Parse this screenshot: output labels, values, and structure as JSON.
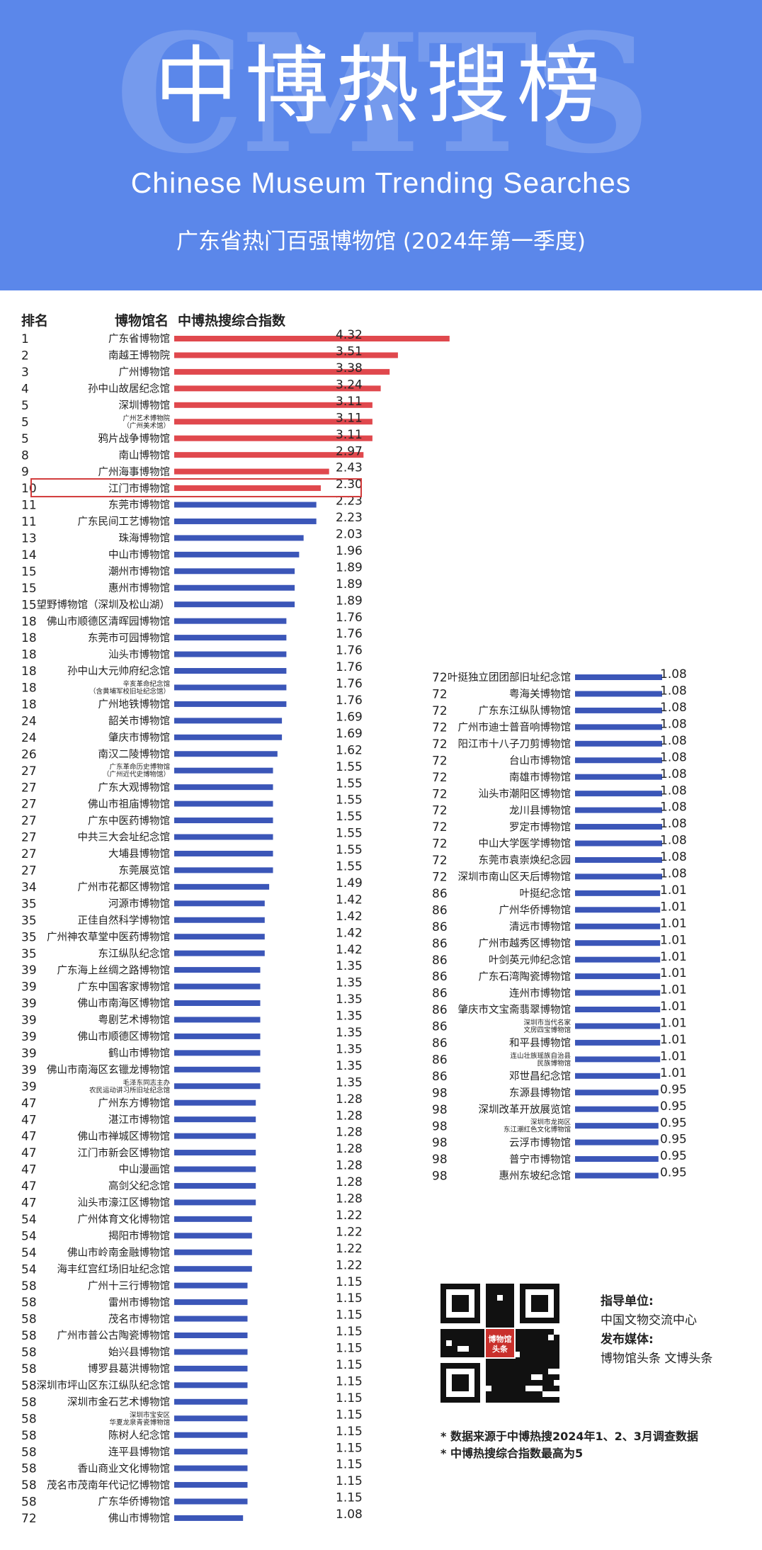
{
  "banner": {
    "watermark": "CMTS",
    "title_cn": "中博热搜榜",
    "title_en": "Chinese Museum Trending Searches",
    "subtitle": "广东省热门百强博物馆 (2024年第一季度)"
  },
  "colors": {
    "banner_bg": "#5b87ea",
    "top_bar": "#e0484d",
    "bar": "#3b56b8",
    "highlight_box": "#d23b3b"
  },
  "chart_data": {
    "type": "bar",
    "orientation": "horizontal",
    "columns": {
      "rank": "排名",
      "name": "博物馆名",
      "index": "中博热搜综合指数"
    },
    "value_range": [
      0,
      5
    ],
    "highlight_rank_row": 10,
    "rows": [
      {
        "rank": "1",
        "name": "广东省博物馆",
        "value": "4.32"
      },
      {
        "rank": "2",
        "name": "南越王博物院",
        "value": "3.51"
      },
      {
        "rank": "3",
        "name": "广州博物馆",
        "value": "3.38"
      },
      {
        "rank": "4",
        "name": "孙中山故居纪念馆",
        "value": "3.24"
      },
      {
        "rank": "5",
        "name": "深圳博物馆",
        "value": "3.11"
      },
      {
        "rank": "5",
        "name": "广州艺术博物院\n（广州美术馆）",
        "value": "3.11"
      },
      {
        "rank": "5",
        "name": "鸦片战争博物馆",
        "value": "3.11"
      },
      {
        "rank": "8",
        "name": "南山博物馆",
        "value": "2.97"
      },
      {
        "rank": "9",
        "name": "广州海事博物馆",
        "value": "2.43"
      },
      {
        "rank": "10",
        "name": "江门市博物馆",
        "value": "2.30"
      },
      {
        "rank": "11",
        "name": "东莞市博物馆",
        "value": "2.23"
      },
      {
        "rank": "11",
        "name": "广东民间工艺博物馆",
        "value": "2.23"
      },
      {
        "rank": "13",
        "name": "珠海博物馆",
        "value": "2.03"
      },
      {
        "rank": "14",
        "name": "中山市博物馆",
        "value": "1.96"
      },
      {
        "rank": "15",
        "name": "潮州市博物馆",
        "value": "1.89"
      },
      {
        "rank": "15",
        "name": "惠州市博物馆",
        "value": "1.89"
      },
      {
        "rank": "15",
        "name": "望野博物馆（深圳及松山湖）",
        "value": "1.89"
      },
      {
        "rank": "18",
        "name": "佛山市顺德区清晖园博物馆",
        "value": "1.76"
      },
      {
        "rank": "18",
        "name": "东莞市可园博物馆",
        "value": "1.76"
      },
      {
        "rank": "18",
        "name": "汕头市博物馆",
        "value": "1.76"
      },
      {
        "rank": "18",
        "name": "孙中山大元帅府纪念馆",
        "value": "1.76"
      },
      {
        "rank": "18",
        "name": "辛亥革命纪念馆\n（含黄埔军校旧址纪念馆）",
        "value": "1.76"
      },
      {
        "rank": "18",
        "name": "广州地铁博物馆",
        "value": "1.76"
      },
      {
        "rank": "24",
        "name": "韶关市博物馆",
        "value": "1.69"
      },
      {
        "rank": "24",
        "name": "肇庆市博物馆",
        "value": "1.69"
      },
      {
        "rank": "26",
        "name": "南汉二陵博物馆",
        "value": "1.62"
      },
      {
        "rank": "27",
        "name": "广东革命历史博物馆\n（广州近代史博物馆）",
        "value": "1.55"
      },
      {
        "rank": "27",
        "name": "广东大观博物馆",
        "value": "1.55"
      },
      {
        "rank": "27",
        "name": "佛山市祖庙博物馆",
        "value": "1.55"
      },
      {
        "rank": "27",
        "name": "广东中医药博物馆",
        "value": "1.55"
      },
      {
        "rank": "27",
        "name": "中共三大会址纪念馆",
        "value": "1.55"
      },
      {
        "rank": "27",
        "name": "大埔县博物馆",
        "value": "1.55"
      },
      {
        "rank": "27",
        "name": "东莞展览馆",
        "value": "1.55"
      },
      {
        "rank": "34",
        "name": "广州市花都区博物馆",
        "value": "1.49"
      },
      {
        "rank": "35",
        "name": "河源市博物馆",
        "value": "1.42"
      },
      {
        "rank": "35",
        "name": "正佳自然科学博物馆",
        "value": "1.42"
      },
      {
        "rank": "35",
        "name": "广州神农草堂中医药博物馆",
        "value": "1.42"
      },
      {
        "rank": "35",
        "name": "东江纵队纪念馆",
        "value": "1.42"
      },
      {
        "rank": "39",
        "name": "广东海上丝绸之路博物馆",
        "value": "1.35"
      },
      {
        "rank": "39",
        "name": "广东中国客家博物馆",
        "value": "1.35"
      },
      {
        "rank": "39",
        "name": "佛山市南海区博物馆",
        "value": "1.35"
      },
      {
        "rank": "39",
        "name": "粤剧艺术博物馆",
        "value": "1.35"
      },
      {
        "rank": "39",
        "name": "佛山市顺德区博物馆",
        "value": "1.35"
      },
      {
        "rank": "39",
        "name": "鹤山市博物馆",
        "value": "1.35"
      },
      {
        "rank": "39",
        "name": "佛山市南海区玄镴龙博物馆",
        "value": "1.35"
      },
      {
        "rank": "39",
        "name": "毛泽东同志主办\n农民运动讲习所旧址纪念馆",
        "value": "1.35"
      },
      {
        "rank": "47",
        "name": "广州东方博物馆",
        "value": "1.28"
      },
      {
        "rank": "47",
        "name": "湛江市博物馆",
        "value": "1.28"
      },
      {
        "rank": "47",
        "name": "佛山市禅城区博物馆",
        "value": "1.28"
      },
      {
        "rank": "47",
        "name": "江门市新会区博物馆",
        "value": "1.28"
      },
      {
        "rank": "47",
        "name": "中山漫画馆",
        "value": "1.28"
      },
      {
        "rank": "47",
        "name": "高剑父纪念馆",
        "value": "1.28"
      },
      {
        "rank": "47",
        "name": "汕头市濠江区博物馆",
        "value": "1.28"
      },
      {
        "rank": "54",
        "name": "广州体育文化博物馆",
        "value": "1.22"
      },
      {
        "rank": "54",
        "name": "揭阳市博物馆",
        "value": "1.22"
      },
      {
        "rank": "54",
        "name": "佛山市岭南金融博物馆",
        "value": "1.22"
      },
      {
        "rank": "54",
        "name": "海丰红宫红场旧址纪念馆",
        "value": "1.22"
      },
      {
        "rank": "58",
        "name": "广州十三行博物馆",
        "value": "1.15"
      },
      {
        "rank": "58",
        "name": "雷州市博物馆",
        "value": "1.15"
      },
      {
        "rank": "58",
        "name": "茂名市博物馆",
        "value": "1.15"
      },
      {
        "rank": "58",
        "name": "广州市普公古陶瓷博物馆",
        "value": "1.15"
      },
      {
        "rank": "58",
        "name": "始兴县博物馆",
        "value": "1.15"
      },
      {
        "rank": "58",
        "name": "博罗县葛洪博物馆",
        "value": "1.15"
      },
      {
        "rank": "58",
        "name": "深圳市坪山区东江纵队纪念馆",
        "value": "1.15"
      },
      {
        "rank": "58",
        "name": "深圳市金石艺术博物馆",
        "value": "1.15"
      },
      {
        "rank": "58",
        "name": "深圳市宝安区\n华夏龙泉青瓷博物馆",
        "value": "1.15"
      },
      {
        "rank": "58",
        "name": "陈树人纪念馆",
        "value": "1.15"
      },
      {
        "rank": "58",
        "name": "连平县博物馆",
        "value": "1.15"
      },
      {
        "rank": "58",
        "name": "香山商业文化博物馆",
        "value": "1.15"
      },
      {
        "rank": "58",
        "name": "茂名市茂南年代记忆博物馆",
        "value": "1.15"
      },
      {
        "rank": "58",
        "name": "广东华侨博物馆",
        "value": "1.15"
      },
      {
        "rank": "72",
        "name": "佛山市博物馆",
        "value": "1.08"
      },
      {
        "rank": "72",
        "name": "叶挺独立团团部旧址纪念馆",
        "value": "1.08"
      },
      {
        "rank": "72",
        "name": "粤海关博物馆",
        "value": "1.08"
      },
      {
        "rank": "72",
        "name": "广东东江纵队博物馆",
        "value": "1.08"
      },
      {
        "rank": "72",
        "name": "广州市迪士普音响博物馆",
        "value": "1.08"
      },
      {
        "rank": "72",
        "name": "阳江市十八子刀剪博物馆",
        "value": "1.08"
      },
      {
        "rank": "72",
        "name": "台山市博物馆",
        "value": "1.08"
      },
      {
        "rank": "72",
        "name": "南雄市博物馆",
        "value": "1.08"
      },
      {
        "rank": "72",
        "name": "汕头市潮阳区博物馆",
        "value": "1.08"
      },
      {
        "rank": "72",
        "name": "龙川县博物馆",
        "value": "1.08"
      },
      {
        "rank": "72",
        "name": "罗定市博物馆",
        "value": "1.08"
      },
      {
        "rank": "72",
        "name": "中山大学医学博物馆",
        "value": "1.08"
      },
      {
        "rank": "72",
        "name": "东莞市袁崇焕纪念园",
        "value": "1.08"
      },
      {
        "rank": "72",
        "name": "深圳市南山区天后博物馆",
        "value": "1.08"
      },
      {
        "rank": "86",
        "name": "叶挺纪念馆",
        "value": "1.01"
      },
      {
        "rank": "86",
        "name": "广州华侨博物馆",
        "value": "1.01"
      },
      {
        "rank": "86",
        "name": "清远市博物馆",
        "value": "1.01"
      },
      {
        "rank": "86",
        "name": "广州市越秀区博物馆",
        "value": "1.01"
      },
      {
        "rank": "86",
        "name": "叶剑英元帅纪念馆",
        "value": "1.01"
      },
      {
        "rank": "86",
        "name": "广东石湾陶瓷博物馆",
        "value": "1.01"
      },
      {
        "rank": "86",
        "name": "连州市博物馆",
        "value": "1.01"
      },
      {
        "rank": "86",
        "name": "肇庆市文宝斋翡翠博物馆",
        "value": "1.01"
      },
      {
        "rank": "86",
        "name": "深圳市当代名家\n文房四宝博物馆",
        "value": "1.01"
      },
      {
        "rank": "86",
        "name": "和平县博物馆",
        "value": "1.01"
      },
      {
        "rank": "86",
        "name": "连山壮族瑶族自治县\n民族博物馆",
        "value": "1.01"
      },
      {
        "rank": "86",
        "name": "邓世昌纪念馆",
        "value": "1.01"
      },
      {
        "rank": "98",
        "name": "东源县博物馆",
        "value": "0.95"
      },
      {
        "rank": "98",
        "name": "深圳改革开放展览馆",
        "value": "0.95"
      },
      {
        "rank": "98",
        "name": "深圳市龙岗区\n东江潮红色文化博物馆",
        "value": "0.95"
      },
      {
        "rank": "98",
        "name": "云浮市博物馆",
        "value": "0.95"
      },
      {
        "rank": "98",
        "name": "普宁市博物馆",
        "value": "0.95"
      },
      {
        "rank": "98",
        "name": "惠州东坡纪念馆",
        "value": "0.95"
      }
    ]
  },
  "credits": {
    "guide_label": "指导单位:",
    "guide_org": "中国文物交流中心",
    "media_label": "发布媒体:",
    "media_orgs": "博物馆头条 文博头条",
    "qr_logo": "博物馆头条"
  },
  "notes": [
    "* 数据来源于中博热搜2024年1、2、3月调查数据",
    "* 中博热搜综合指数最高为5"
  ]
}
